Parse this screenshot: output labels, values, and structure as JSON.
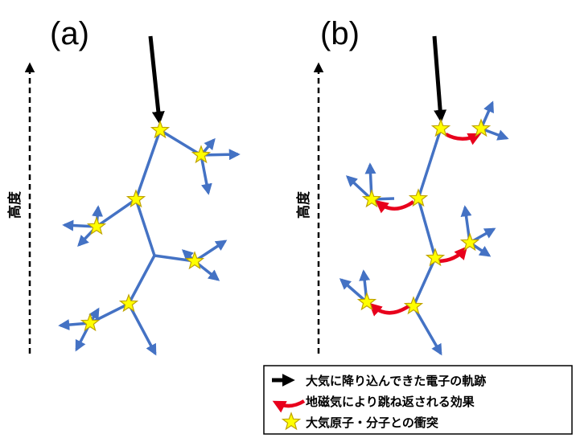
{
  "panels": [
    {
      "id": "a",
      "label": "(a)",
      "axis_label": "高度"
    },
    {
      "id": "b",
      "label": "(b)",
      "axis_label": "高度"
    }
  ],
  "legend": {
    "items": [
      {
        "key": "electron-track",
        "text": "大気に降り込んできた電子の軌跡",
        "color": "#000000"
      },
      {
        "key": "geomagnetic-bounce",
        "text": "地磁気により跳ね返される効果",
        "color": "#e8001c"
      },
      {
        "key": "collision",
        "text": "大気原子・分子との衝突",
        "color": "#ffff00"
      }
    ]
  },
  "colors": {
    "track": "#4472c4",
    "incoming": "#000000",
    "bounce": "#e8001c",
    "star_fill": "#ffff00",
    "star_stroke": "#bfa300"
  }
}
